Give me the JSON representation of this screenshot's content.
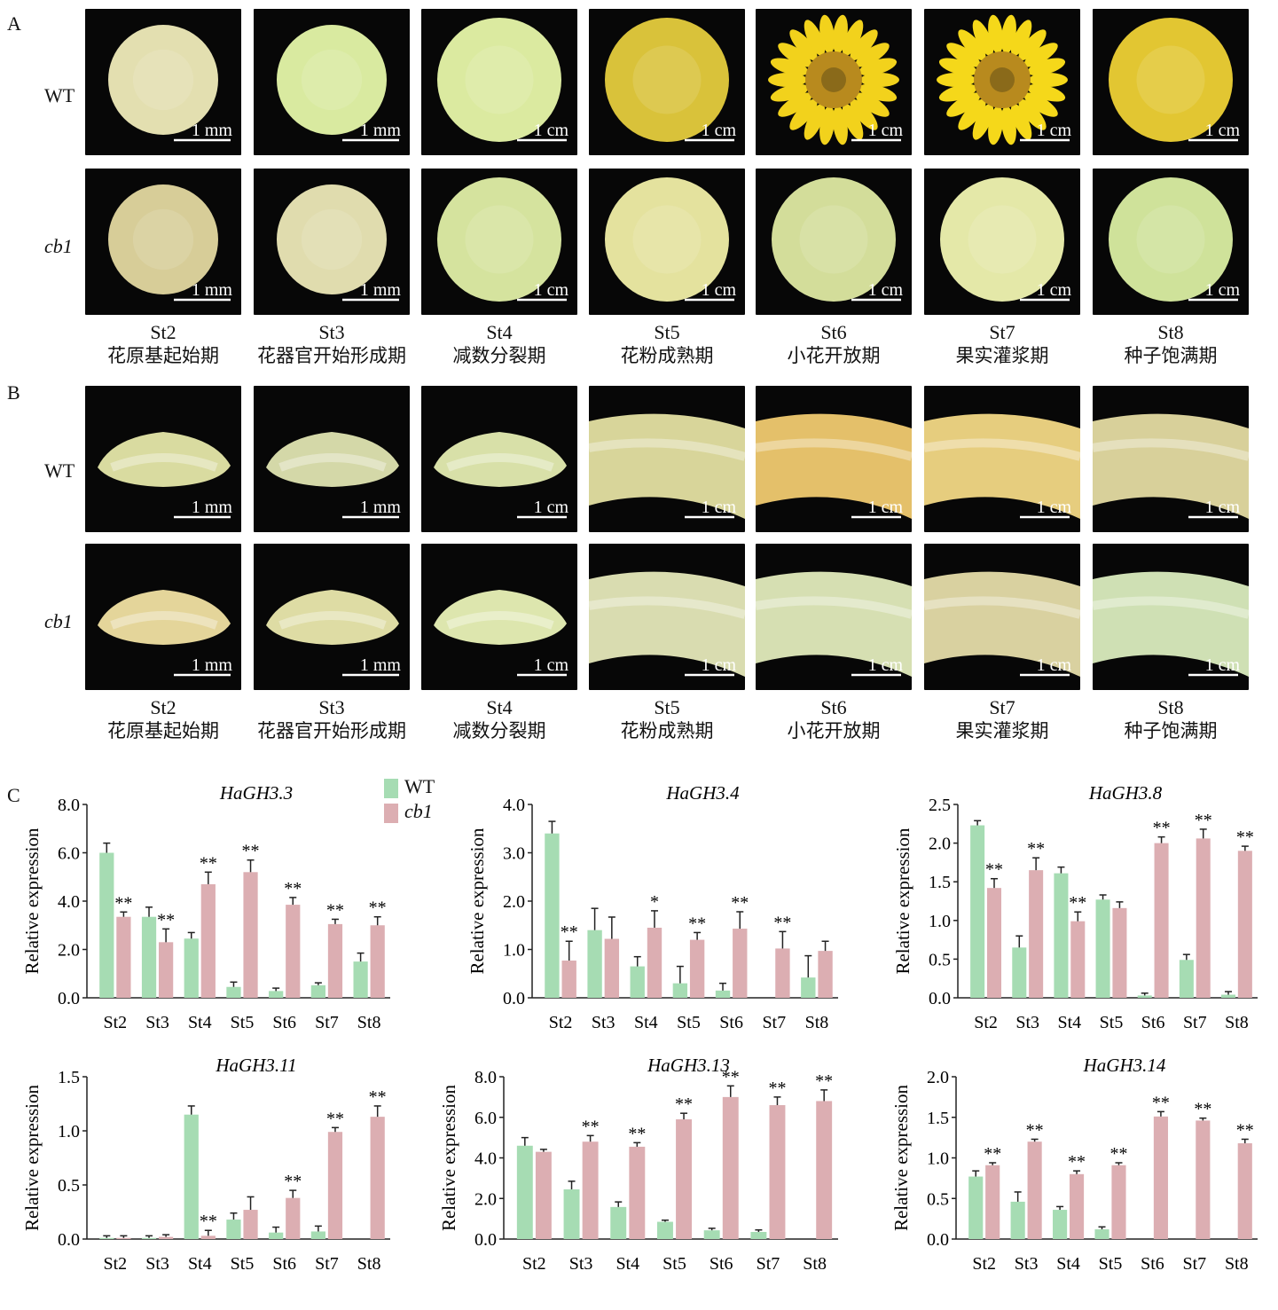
{
  "panels": {
    "A": {
      "letter": "A"
    },
    "B": {
      "letter": "B"
    },
    "C": {
      "letter": "C"
    }
  },
  "rows": {
    "wt": "WT",
    "mut": "cb1"
  },
  "stages": [
    {
      "code": "St2",
      "name": "花原基起始期"
    },
    {
      "code": "St3",
      "name": "花器官开始形成期"
    },
    {
      "code": "St4",
      "name": "减数分裂期"
    },
    {
      "code": "St5",
      "name": "花粉成熟期"
    },
    {
      "code": "St6",
      "name": "小花开放期"
    },
    {
      "code": "St7",
      "name": "果实灌浆期"
    },
    {
      "code": "St8",
      "name": "种子饱满期"
    }
  ],
  "scale_bars": {
    "A_wt": [
      "1 mm",
      "1 mm",
      "1 cm",
      "1 cm",
      "1 cm",
      "1 cm",
      "1 cm"
    ],
    "A_mut": [
      "1 mm",
      "1 mm",
      "1 cm",
      "1 cm",
      "1 cm",
      "1 cm",
      "1 cm"
    ],
    "B_wt": [
      "1 mm",
      "1 mm",
      "1 cm",
      "1 cm",
      "1 cm",
      "1 cm",
      "1 cm"
    ],
    "B_mut": [
      "1 mm",
      "1 mm",
      "1 cm",
      "1 cm",
      "1 cm",
      "1 cm",
      "1 cm"
    ]
  },
  "photo_colors": {
    "A_wt": [
      "#e3dfb0",
      "#d9eaa0",
      "#dbeaa0",
      "#d9c23a",
      "#f2d21c",
      "#f5d81a",
      "#e2c632"
    ],
    "A_mut": [
      "#d7cd98",
      "#e0dcae",
      "#d5e39e",
      "#e4e29e",
      "#d3dd9a",
      "#e4e8a8",
      "#cfe29a"
    ],
    "B_wt": [
      "#d9dba0",
      "#d4d8a8",
      "#d8e0a8",
      "#d8d59a",
      "#e4c06a",
      "#e6cd7e",
      "#d8d09a"
    ],
    "B_mut": [
      "#e4d59a",
      "#dedca4",
      "#dde6ae",
      "#d9dcb0",
      "#d6dfb2",
      "#d9d1a0",
      "#cfe0b4"
    ]
  },
  "legend": {
    "wt": "WT",
    "mut": "cb1",
    "wt_color": "#a6dcb3",
    "mut_color": "#dcaeb2"
  },
  "chart_data": [
    {
      "type": "bar",
      "title": "HaGH3.3",
      "ylabel": "Relative expression",
      "ylim": [
        0,
        8
      ],
      "yticks": [
        "0.0",
        "2.0",
        "4.0",
        "6.0",
        "8.0"
      ],
      "categories": [
        "St2",
        "St3",
        "St4",
        "St5",
        "St6",
        "St7",
        "St8"
      ],
      "series": [
        {
          "name": "WT",
          "values": [
            6.0,
            3.35,
            2.45,
            0.45,
            0.28,
            0.52,
            1.5
          ],
          "errors": [
            0.4,
            0.4,
            0.25,
            0.2,
            0.12,
            0.1,
            0.35
          ],
          "sig": [
            "",
            "",
            "",
            "",
            "",
            "",
            ""
          ]
        },
        {
          "name": "cb1",
          "values": [
            3.35,
            2.3,
            4.7,
            5.2,
            3.85,
            3.05,
            3.0
          ],
          "errors": [
            0.2,
            0.55,
            0.5,
            0.5,
            0.3,
            0.2,
            0.35
          ],
          "sig": [
            "**",
            "**",
            "**",
            "**",
            "**",
            "**",
            "**"
          ]
        }
      ]
    },
    {
      "type": "bar",
      "title": "HaGH3.4",
      "ylabel": "Relative expression",
      "ylim": [
        0,
        4
      ],
      "yticks": [
        "0.0",
        "1.0",
        "2.0",
        "3.0",
        "4.0"
      ],
      "categories": [
        "St2",
        "St3",
        "St4",
        "St5",
        "St6",
        "St7",
        "St8"
      ],
      "series": [
        {
          "name": "WT",
          "values": [
            3.4,
            1.4,
            0.65,
            0.3,
            0.15,
            0.0,
            0.42
          ],
          "errors": [
            0.25,
            0.45,
            0.2,
            0.35,
            0.15,
            0.0,
            0.45
          ],
          "sig": [
            "",
            "",
            "",
            "",
            "",
            "",
            ""
          ]
        },
        {
          "name": "cb1",
          "values": [
            0.77,
            1.22,
            1.45,
            1.2,
            1.43,
            1.02,
            0.97
          ],
          "errors": [
            0.4,
            0.45,
            0.35,
            0.15,
            0.35,
            0.35,
            0.2
          ],
          "sig": [
            "**",
            "",
            "*",
            "**",
            "**",
            "**",
            ""
          ]
        }
      ]
    },
    {
      "type": "bar",
      "title": "HaGH3.8",
      "ylabel": "Relative expression",
      "ylim": [
        0,
        2.5
      ],
      "yticks": [
        "0.0",
        "0.5",
        "1.0",
        "1.5",
        "2.0",
        "2.5"
      ],
      "categories": [
        "St2",
        "St3",
        "St4",
        "St5",
        "St6",
        "St7",
        "St8"
      ],
      "series": [
        {
          "name": "WT",
          "values": [
            2.23,
            0.65,
            1.61,
            1.27,
            0.03,
            0.49,
            0.04
          ],
          "errors": [
            0.06,
            0.15,
            0.08,
            0.06,
            0.03,
            0.07,
            0.04
          ],
          "sig": [
            "",
            "",
            "",
            "",
            "",
            "",
            ""
          ]
        },
        {
          "name": "cb1",
          "values": [
            1.42,
            1.65,
            0.99,
            1.16,
            2.0,
            2.06,
            1.9
          ],
          "errors": [
            0.12,
            0.16,
            0.12,
            0.08,
            0.08,
            0.12,
            0.06
          ],
          "sig": [
            "**",
            "**",
            "**",
            "",
            "**",
            "**",
            "**"
          ]
        }
      ]
    },
    {
      "type": "bar",
      "title": "HaGH3.11",
      "ylabel": "Relative expression",
      "ylim": [
        0,
        1.5
      ],
      "yticks": [
        "0.0",
        "0.5",
        "1.0",
        "1.5"
      ],
      "categories": [
        "St2",
        "St3",
        "St4",
        "St5",
        "St6",
        "St7",
        "St8"
      ],
      "series": [
        {
          "name": "WT",
          "values": [
            0.01,
            0.01,
            1.15,
            0.18,
            0.06,
            0.07,
            0.0
          ],
          "errors": [
            0.02,
            0.02,
            0.08,
            0.06,
            0.05,
            0.05,
            0.0
          ],
          "sig": [
            "",
            "",
            "",
            "",
            "",
            "",
            ""
          ]
        },
        {
          "name": "cb1",
          "values": [
            0.01,
            0.02,
            0.03,
            0.27,
            0.38,
            0.99,
            1.13
          ],
          "errors": [
            0.02,
            0.02,
            0.05,
            0.12,
            0.07,
            0.04,
            0.1
          ],
          "sig": [
            "",
            "",
            "**",
            "",
            "**",
            "**",
            "**"
          ]
        }
      ]
    },
    {
      "type": "bar",
      "title": "HaGH3.13",
      "ylabel": "Relative expression",
      "ylim": [
        0,
        8
      ],
      "yticks": [
        "0.0",
        "2.0",
        "4.0",
        "6.0",
        "8.0"
      ],
      "categories": [
        "St2",
        "St3",
        "St4",
        "St5",
        "St6",
        "St7",
        "St8"
      ],
      "series": [
        {
          "name": "WT",
          "values": [
            4.6,
            2.45,
            1.58,
            0.85,
            0.43,
            0.35,
            0.0
          ],
          "errors": [
            0.4,
            0.4,
            0.25,
            0.08,
            0.1,
            0.1,
            0.0
          ],
          "sig": [
            "",
            "",
            "",
            "",
            "",
            "",
            ""
          ]
        },
        {
          "name": "cb1",
          "values": [
            4.3,
            4.8,
            4.55,
            5.9,
            7.0,
            6.6,
            6.8
          ],
          "errors": [
            0.12,
            0.3,
            0.2,
            0.3,
            0.55,
            0.4,
            0.55
          ],
          "sig": [
            "",
            "**",
            "**",
            "**",
            "**",
            "**",
            "**"
          ]
        }
      ]
    },
    {
      "type": "bar",
      "title": "HaGH3.14",
      "ylabel": "Relative expression",
      "ylim": [
        0,
        2
      ],
      "yticks": [
        "0.0",
        "0.5",
        "1.0",
        "1.5",
        "2.0"
      ],
      "categories": [
        "St2",
        "St3",
        "St4",
        "St5",
        "St6",
        "St7",
        "St8"
      ],
      "series": [
        {
          "name": "WT",
          "values": [
            0.77,
            0.46,
            0.36,
            0.12,
            0.0,
            0.0,
            0.0
          ],
          "errors": [
            0.07,
            0.12,
            0.04,
            0.03,
            0.0,
            0.0,
            0.0
          ],
          "sig": [
            "",
            "",
            "",
            "",
            "",
            "",
            ""
          ]
        },
        {
          "name": "cb1",
          "values": [
            0.91,
            1.2,
            0.8,
            0.91,
            1.51,
            1.46,
            1.18
          ],
          "errors": [
            0.03,
            0.03,
            0.04,
            0.03,
            0.06,
            0.03,
            0.05
          ],
          "sig": [
            "**",
            "**",
            "**",
            "**",
            "**",
            "**",
            "**"
          ]
        }
      ]
    }
  ]
}
